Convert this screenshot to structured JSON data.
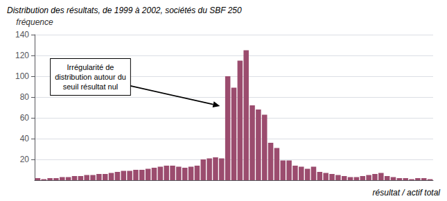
{
  "chart_data": {
    "type": "bar",
    "title": "Distribution des résultats, de 1999 à 2002, sociétés du SBF 250",
    "ylabel": "fréquence",
    "xlabel": "résultat / actif total",
    "annotation": "Irrégularité de\ndistribution autour du\nseuil résultat nul",
    "values": [
      2,
      1,
      2,
      2,
      3,
      3,
      4,
      4,
      5,
      5,
      6,
      6,
      7,
      8,
      9,
      9,
      10,
      10,
      11,
      12,
      13,
      14,
      14,
      13,
      12,
      13,
      14,
      20,
      21,
      22,
      21,
      100,
      89,
      115,
      125,
      72,
      68,
      63,
      36,
      31,
      19,
      19,
      14,
      13,
      11,
      13,
      8,
      7,
      6,
      5,
      4,
      3,
      3,
      4,
      5,
      6,
      7,
      4,
      3,
      2,
      2,
      1,
      2,
      2,
      1
    ],
    "color": "#9B4C6E",
    "ylim": [
      0,
      140
    ],
    "yticks": [
      20,
      40,
      60,
      80,
      100,
      120,
      140
    ],
    "grid": true,
    "tick_labels": "y"
  }
}
